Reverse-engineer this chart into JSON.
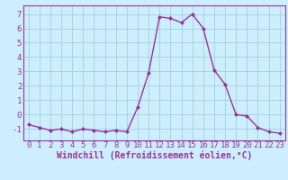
{
  "x": [
    0,
    1,
    2,
    3,
    4,
    5,
    6,
    7,
    8,
    9,
    10,
    11,
    12,
    13,
    14,
    15,
    16,
    17,
    18,
    19,
    20,
    21,
    22,
    23
  ],
  "y": [
    -0.7,
    -0.9,
    -1.1,
    -1.0,
    -1.2,
    -1.0,
    -1.1,
    -1.2,
    -1.1,
    -1.2,
    0.5,
    2.9,
    6.8,
    6.7,
    6.4,
    7.0,
    6.0,
    3.1,
    2.1,
    0.0,
    -0.1,
    -0.9,
    -1.2,
    -1.3
  ],
  "line_color": "#993399",
  "marker": "D",
  "marker_size": 2.0,
  "bg_color": "#cceeff",
  "grid_color": "#99cccc",
  "xlabel": "Windchill (Refroidissement éolien,°C)",
  "ylim": [
    -1.8,
    7.6
  ],
  "xlim": [
    -0.5,
    23.5
  ],
  "yticks": [
    -1,
    0,
    1,
    2,
    3,
    4,
    5,
    6,
    7
  ],
  "xticks": [
    0,
    1,
    2,
    3,
    4,
    5,
    6,
    7,
    8,
    9,
    10,
    11,
    12,
    13,
    14,
    15,
    16,
    17,
    18,
    19,
    20,
    21,
    22,
    23
  ],
  "tick_fontsize": 6.5,
  "xlabel_fontsize": 7.0,
  "line_width": 1.0,
  "spine_color": "#993399",
  "tick_color": "#993399",
  "label_color": "#993399"
}
